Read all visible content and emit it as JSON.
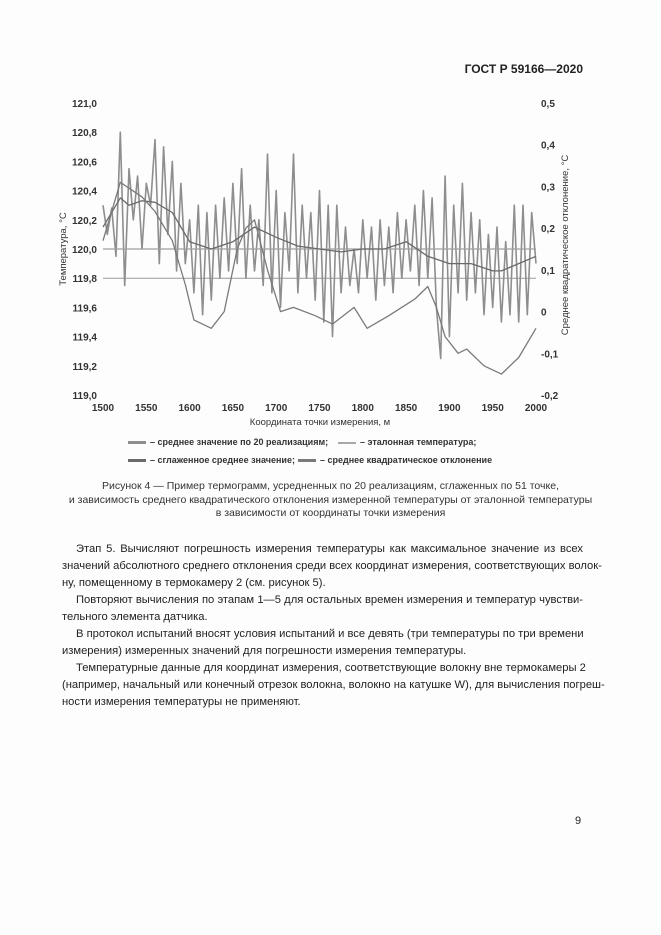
{
  "header": {
    "doc_id": "ГОСТ Р 59166—2020"
  },
  "chart_data": {
    "type": "line",
    "xlabel": "Координата точки измерения, м",
    "ylabel": "Температура, °С",
    "y2label": "Среднее квадратическое отклонение, °С",
    "xlim": [
      1500,
      2000
    ],
    "ylim": [
      119.0,
      121.0
    ],
    "y2lim": [
      -0.2,
      0.5
    ],
    "x_ticks": [
      "1500",
      "1550",
      "1600",
      "1650",
      "1700",
      "1750",
      "1800",
      "1850",
      "1900",
      "1950",
      "2000"
    ],
    "y_ticks": [
      "121,0",
      "120,8",
      "120,6",
      "120,4",
      "120,2",
      "120,0",
      "119,8",
      "119,6",
      "119,4",
      "119,2",
      "119,0"
    ],
    "y2_ticks": [
      "0,5",
      "0,4",
      "0,3",
      "0,2",
      "0,1",
      "0",
      "-0,1",
      "-0,2"
    ],
    "grid": false,
    "horizontal_line": 119.8,
    "legend": [
      "– среднее значение по 20 реализациям;",
      "– эталонная температура;",
      "– сглаженное среднее значение;",
      "– среднее квадратическое отклонение"
    ],
    "series": [
      {
        "name": "среднее значение по 20 реализациям",
        "axis": "left",
        "color": "#8e8e8e",
        "x_start": 1500,
        "x_step": 5,
        "values": [
          120.3,
          120.1,
          120.28,
          119.95,
          120.8,
          119.75,
          120.55,
          120.2,
          120.5,
          120.0,
          120.45,
          120.3,
          120.75,
          119.9,
          120.7,
          120.1,
          120.6,
          119.85,
          120.45,
          119.9,
          120.2,
          119.7,
          120.3,
          119.55,
          120.25,
          119.65,
          120.3,
          119.8,
          120.35,
          119.85,
          120.45,
          119.9,
          120.55,
          119.8,
          120.3,
          119.85,
          120.2,
          119.75,
          120.65,
          119.7,
          120.4,
          119.6,
          120.25,
          119.85,
          120.65,
          119.7,
          120.3,
          119.8,
          120.25,
          119.65,
          120.4,
          119.5,
          120.3,
          119.4,
          120.3,
          119.7,
          120.15,
          119.75,
          120.0,
          119.7,
          120.2,
          119.8,
          120.15,
          119.65,
          120.2,
          119.75,
          120.15,
          119.7,
          120.25,
          119.8,
          120.2,
          119.85,
          120.3,
          119.75,
          120.4,
          119.8,
          120.35,
          119.6,
          119.25,
          120.5,
          119.4,
          120.3,
          119.7,
          120.45,
          119.65,
          120.25,
          119.7,
          120.2,
          119.55,
          120.1,
          119.6,
          120.15,
          119.5,
          120.05,
          119.55,
          120.3,
          119.5,
          120.3,
          119.55,
          120.25,
          119.9
        ]
      },
      {
        "name": "эталонная температура",
        "axis": "left",
        "color": "#a0a0a0",
        "x": [
          1500,
          2000
        ],
        "values": [
          120.0,
          120.0
        ]
      },
      {
        "name": "сглаженное среднее значение",
        "axis": "left",
        "color": "#6a6a6a",
        "x": [
          1500,
          1520,
          1530,
          1545,
          1560,
          1580,
          1600,
          1625,
          1650,
          1675,
          1700,
          1725,
          1750,
          1775,
          1800,
          1825,
          1850,
          1875,
          1900,
          1925,
          1950,
          1960,
          1980,
          2000
        ],
        "values": [
          120.15,
          120.35,
          120.3,
          120.33,
          120.32,
          120.25,
          120.05,
          120.0,
          120.05,
          120.15,
          120.08,
          120.02,
          120.0,
          119.98,
          120.0,
          120.0,
          120.05,
          119.95,
          119.9,
          119.9,
          119.85,
          119.85,
          119.9,
          119.95
        ]
      },
      {
        "name": "среднее квадратическое отклонение",
        "axis": "right",
        "color": "#7a7a7a",
        "x": [
          1500,
          1520,
          1545,
          1560,
          1580,
          1595,
          1605,
          1625,
          1640,
          1655,
          1665,
          1675,
          1690,
          1705,
          1720,
          1745,
          1765,
          1790,
          1805,
          1830,
          1860,
          1875,
          1885,
          1895,
          1910,
          1920,
          1940,
          1960,
          1980,
          2000
        ],
        "values": [
          0.17,
          0.31,
          0.275,
          0.24,
          0.17,
          0.065,
          -0.02,
          -0.04,
          0.0,
          0.15,
          0.2,
          0.22,
          0.1,
          0.0,
          0.01,
          -0.01,
          -0.03,
          0.01,
          -0.04,
          -0.01,
          0.03,
          0.06,
          0.01,
          -0.06,
          -0.1,
          -0.09,
          -0.13,
          -0.15,
          -0.11,
          -0.04
        ]
      }
    ]
  },
  "caption": [
    "Рисунок 4 — Пример термограмм, усредненных по 20 реализациям, сглаженных по 51 точке,",
    "и зависимость среднего квадратического отклонения измеренной температуры от эталонной температуры",
    "в зависимости от координаты точки измерения"
  ],
  "paragraphs": [
    [
      "Этап 5. Вычисляют погрешность измерения температуры как максимальное значение из всех",
      "значений абсолютного среднего отклонения среди всех координат измерения, соответствующих волок-",
      "ну, помещенному в термокамеру 2 (см. рисунок 5)."
    ],
    [
      "Повторяют вычисления по этапам 1—5 для остальных времен измерения и температур чувстви-",
      "тельного элемента датчика."
    ],
    [
      "В протокол испытаний вносят условия испытаний и все девять (три температуры по три времени",
      "измерения) измеренных значений для погрешности измерения температуры."
    ],
    [
      "Температурные данные для координат измерения, соответствующие волокну вне термокамеры 2",
      "(например, начальный или конечный отрезок волокна, волокно на катушке W), для вычисления погреш-",
      "ности измерения температуры не применяют."
    ]
  ],
  "page_number": "9"
}
